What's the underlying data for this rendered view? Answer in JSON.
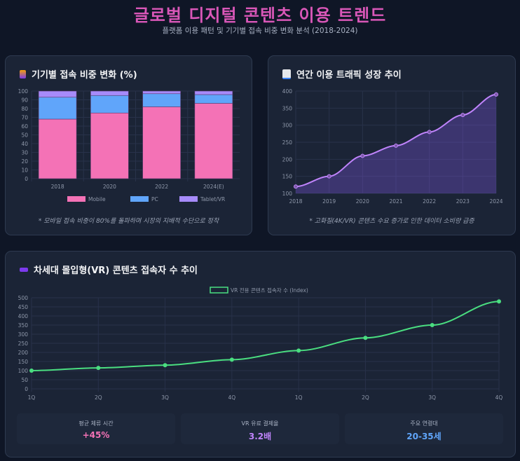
{
  "header": {
    "title": "글로벌 디지털 콘텐츠 이용 트렌드",
    "subtitle": "플랫폼 이용 패턴 및 기기별 접속 비중 변화 분석 (2018-2024)"
  },
  "cards": {
    "device": {
      "title": "기기별 접속 비중 변화 (%)",
      "icon": "mobile-phone-icon",
      "note": "* 모바일 접속 비중이 80%를 돌파하며 시장의 지배적 수단으로 정착"
    },
    "traffic": {
      "title": "연간 이용 트래픽 성장 추이",
      "icon": "chart-increasing-icon",
      "note": "* 고화질(4K/VR) 콘텐츠 수요 증가로 인한 데이터 소비량 급증"
    },
    "vr": {
      "title": "차세대 몰입형(VR) 콘텐츠 접속자 수 추이",
      "icon": "vr-goggles-icon"
    }
  },
  "stats": [
    {
      "label": "평균 체류 시간",
      "value": "+45%",
      "color": "#f472b6"
    },
    {
      "label": "VR 유료 결제율",
      "value": "3.2배",
      "color": "#c084fc"
    },
    {
      "label": "주요 연령대",
      "value": "20-35세",
      "color": "#60a5fa"
    }
  ],
  "chart_data": [
    {
      "type": "bar",
      "stacked": true,
      "categories": [
        "2018",
        "2020",
        "2022",
        "2024(E)"
      ],
      "series": [
        {
          "name": "Mobile",
          "values": [
            68,
            75,
            82,
            86
          ],
          "color": "#f472b6"
        },
        {
          "name": "PC",
          "values": [
            25,
            20,
            15,
            10
          ],
          "color": "#60a5fa"
        },
        {
          "name": "Tablet/VR",
          "values": [
            7,
            5,
            3,
            4
          ],
          "color": "#a78bfa"
        }
      ],
      "ylim": [
        0,
        100
      ],
      "yticks": [
        0,
        10,
        20,
        30,
        40,
        50,
        60,
        70,
        80,
        90,
        100
      ],
      "grid": true,
      "legend": "bottom"
    },
    {
      "type": "area",
      "x": [
        "2018",
        "2019",
        "2020",
        "2021",
        "2022",
        "2023",
        "2024"
      ],
      "values": [
        120,
        150,
        210,
        240,
        280,
        330,
        390
      ],
      "color": "#c084fc",
      "ylim": [
        100,
        400
      ],
      "yticks": [
        100,
        150,
        200,
        250,
        300,
        350,
        400
      ],
      "grid": true
    },
    {
      "type": "line",
      "x": [
        "1Q",
        "2Q",
        "3Q",
        "4Q",
        "1Q",
        "2Q",
        "3Q",
        "4Q"
      ],
      "series": [
        {
          "name": "VR 전용 콘텐츠 접속자 수 (Index)",
          "values": [
            100,
            115,
            130,
            160,
            210,
            280,
            350,
            480
          ],
          "color": "#4ade80"
        }
      ],
      "ylim": [
        0,
        500
      ],
      "yticks": [
        0,
        50,
        100,
        150,
        200,
        250,
        300,
        350,
        400,
        450,
        500
      ],
      "grid": true,
      "legend": "top"
    }
  ]
}
